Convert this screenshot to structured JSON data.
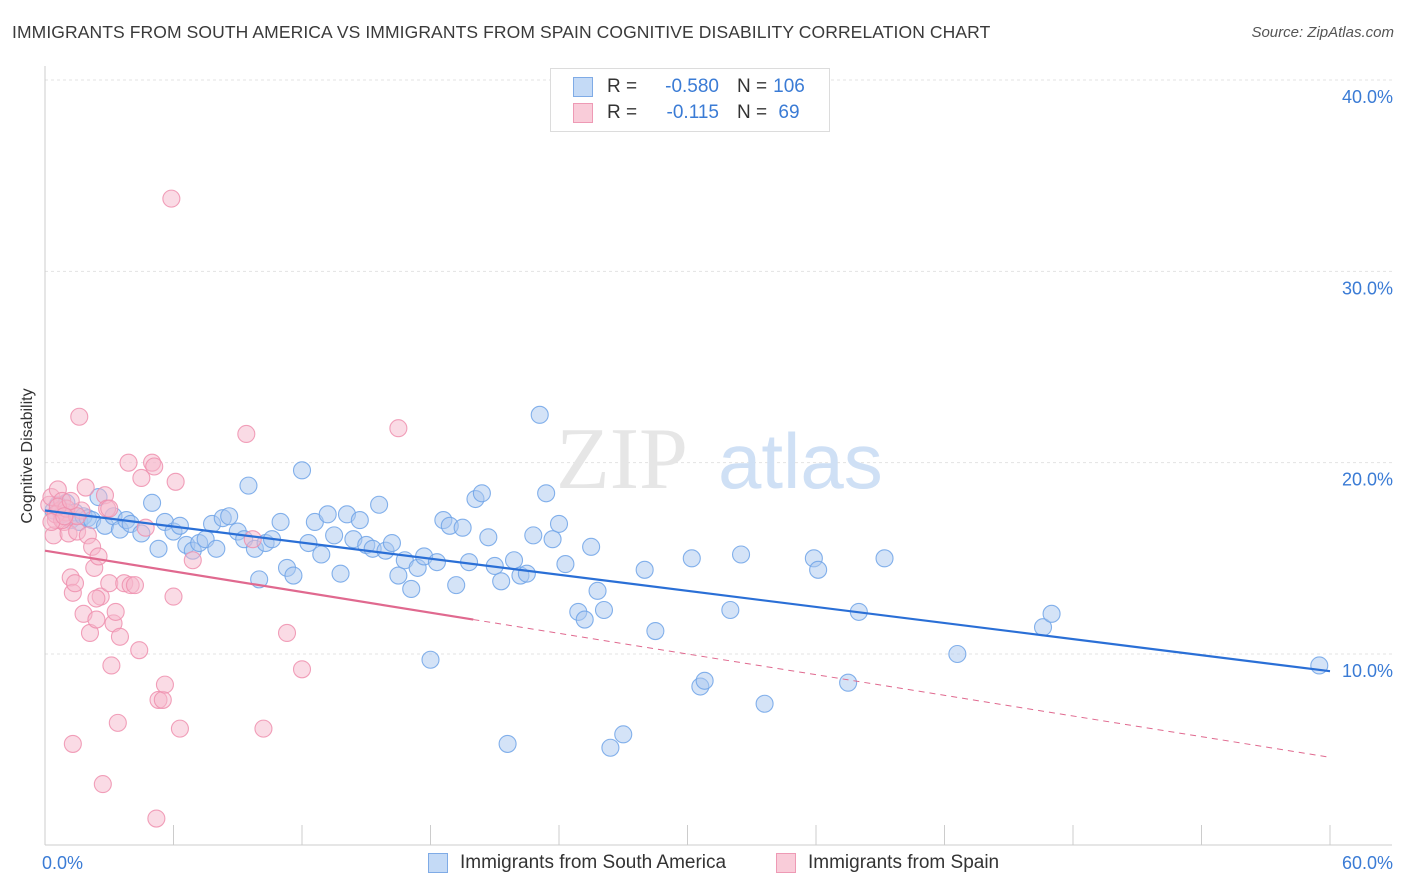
{
  "header": {
    "title": "IMMIGRANTS FROM SOUTH AMERICA VS IMMIGRANTS FROM SPAIN COGNITIVE DISABILITY CORRELATION CHART",
    "source": "Source: ZipAtlas.com"
  },
  "watermark": {
    "zip": "ZIP",
    "atlas": "atlas"
  },
  "legend": {
    "r_label": "R =",
    "n_label": "N =",
    "rows": [
      {
        "r": "-0.580",
        "n": "106",
        "color": "#a9c8f0"
      },
      {
        "r": "-0.115",
        "n": "69",
        "color": "#f5b8cb"
      }
    ]
  },
  "chart_data": {
    "type": "scatter",
    "title": "IMMIGRANTS FROM SOUTH AMERICA VS IMMIGRANTS FROM SPAIN COGNITIVE DISABILITY CORRELATION CHART",
    "xlabel": "",
    "ylabel": "Cognitive Disability",
    "xlim": [
      0,
      60
    ],
    "ylim": [
      0,
      40
    ],
    "x_tick_labels": [
      "0.0%",
      "60.0%"
    ],
    "y_ticks": [
      10,
      20,
      30,
      40
    ],
    "y_tick_labels": [
      "10.0%",
      "20.0%",
      "30.0%",
      "40.0%"
    ],
    "grid": true,
    "legend_position": "top-center",
    "series": [
      {
        "name": "Immigrants from South America",
        "color": "#6fa3e8",
        "fill": "#a9c8f0",
        "line_color": "#2a6fd6",
        "trend": {
          "x0": 0.0,
          "y0": 17.5,
          "x1": 60.0,
          "y1": 9.1,
          "dashed_from": null
        },
        "points": [
          [
            0.4,
            17.5
          ],
          [
            0.6,
            17.8
          ],
          [
            0.8,
            17.3
          ],
          [
            1.0,
            17.9
          ],
          [
            1.2,
            17.0
          ],
          [
            1.4,
            17.4
          ],
          [
            1.6,
            16.9
          ],
          [
            1.8,
            17.2
          ],
          [
            2.0,
            17.1
          ],
          [
            2.2,
            17.0
          ],
          [
            2.5,
            18.2
          ],
          [
            2.8,
            16.7
          ],
          [
            3.2,
            17.2
          ],
          [
            3.5,
            16.5
          ],
          [
            3.8,
            17.0
          ],
          [
            4.0,
            16.8
          ],
          [
            4.5,
            16.3
          ],
          [
            5.0,
            17.9
          ],
          [
            5.3,
            15.5
          ],
          [
            5.6,
            16.9
          ],
          [
            6.0,
            16.4
          ],
          [
            6.3,
            16.7
          ],
          [
            6.6,
            15.7
          ],
          [
            6.9,
            15.4
          ],
          [
            7.2,
            15.8
          ],
          [
            7.5,
            16.0
          ],
          [
            7.8,
            16.8
          ],
          [
            8.0,
            15.5
          ],
          [
            8.3,
            17.1
          ],
          [
            8.6,
            17.2
          ],
          [
            9.0,
            16.4
          ],
          [
            9.3,
            16.0
          ],
          [
            9.5,
            18.8
          ],
          [
            9.8,
            15.5
          ],
          [
            10.0,
            13.9
          ],
          [
            10.3,
            15.8
          ],
          [
            10.6,
            16.0
          ],
          [
            11.0,
            16.9
          ],
          [
            11.3,
            14.5
          ],
          [
            11.6,
            14.1
          ],
          [
            12.0,
            19.6
          ],
          [
            12.3,
            15.8
          ],
          [
            12.6,
            16.9
          ],
          [
            12.9,
            15.2
          ],
          [
            13.2,
            17.3
          ],
          [
            13.5,
            16.2
          ],
          [
            13.8,
            14.2
          ],
          [
            14.1,
            17.3
          ],
          [
            14.4,
            16.0
          ],
          [
            14.7,
            17.0
          ],
          [
            15.0,
            15.7
          ],
          [
            15.3,
            15.5
          ],
          [
            15.6,
            17.8
          ],
          [
            15.9,
            15.4
          ],
          [
            16.2,
            15.8
          ],
          [
            16.5,
            14.1
          ],
          [
            16.8,
            14.9
          ],
          [
            17.1,
            13.4
          ],
          [
            17.4,
            14.5
          ],
          [
            17.7,
            15.1
          ],
          [
            18.0,
            9.7
          ],
          [
            18.3,
            14.8
          ],
          [
            18.6,
            17.0
          ],
          [
            18.9,
            16.7
          ],
          [
            19.2,
            13.6
          ],
          [
            19.5,
            16.6
          ],
          [
            19.8,
            14.8
          ],
          [
            20.1,
            18.1
          ],
          [
            20.4,
            18.4
          ],
          [
            20.7,
            16.1
          ],
          [
            21.0,
            14.6
          ],
          [
            21.3,
            13.8
          ],
          [
            21.6,
            5.3
          ],
          [
            21.9,
            14.9
          ],
          [
            22.2,
            14.1
          ],
          [
            22.5,
            14.2
          ],
          [
            22.8,
            16.2
          ],
          [
            23.1,
            22.5
          ],
          [
            23.4,
            18.4
          ],
          [
            23.7,
            16.0
          ],
          [
            24.0,
            16.8
          ],
          [
            24.3,
            14.7
          ],
          [
            24.9,
            12.2
          ],
          [
            25.2,
            11.8
          ],
          [
            25.5,
            15.6
          ],
          [
            25.8,
            13.3
          ],
          [
            26.1,
            12.3
          ],
          [
            26.4,
            5.1
          ],
          [
            27.0,
            5.8
          ],
          [
            28.0,
            14.4
          ],
          [
            28.5,
            11.2
          ],
          [
            30.2,
            15.0
          ],
          [
            30.6,
            8.3
          ],
          [
            30.8,
            8.6
          ],
          [
            32.0,
            12.3
          ],
          [
            32.5,
            15.2
          ],
          [
            33.6,
            7.4
          ],
          [
            35.9,
            15.0
          ],
          [
            36.1,
            14.4
          ],
          [
            37.5,
            8.5
          ],
          [
            38.0,
            12.2
          ],
          [
            39.2,
            15.0
          ],
          [
            42.6,
            10.0
          ],
          [
            46.6,
            11.4
          ],
          [
            47.0,
            12.1
          ],
          [
            59.5,
            9.4
          ]
        ]
      },
      {
        "name": "Immigrants from Spain",
        "color": "#ee8fae",
        "fill": "#f5b8cb",
        "line_color": "#e0698f",
        "trend": {
          "x0": 0.0,
          "y0": 15.4,
          "x1": 60.0,
          "y1": 4.6,
          "dashed_from": 20.0
        },
        "points": [
          [
            0.2,
            17.8
          ],
          [
            0.3,
            18.2
          ],
          [
            0.4,
            16.2
          ],
          [
            0.5,
            17.0
          ],
          [
            0.6,
            18.6
          ],
          [
            0.7,
            17.5
          ],
          [
            0.8,
            18.0
          ],
          [
            0.9,
            16.9
          ],
          [
            1.0,
            17.4
          ],
          [
            1.1,
            16.3
          ],
          [
            1.2,
            14.0
          ],
          [
            1.3,
            13.2
          ],
          [
            1.4,
            13.7
          ],
          [
            1.5,
            16.4
          ],
          [
            1.6,
            22.4
          ],
          [
            1.7,
            17.5
          ],
          [
            1.8,
            12.1
          ],
          [
            1.9,
            18.7
          ],
          [
            2.0,
            16.2
          ],
          [
            2.1,
            11.1
          ],
          [
            2.2,
            15.6
          ],
          [
            2.3,
            14.5
          ],
          [
            2.4,
            11.8
          ],
          [
            2.5,
            15.1
          ],
          [
            2.6,
            13.0
          ],
          [
            2.7,
            3.2
          ],
          [
            2.8,
            18.3
          ],
          [
            2.9,
            17.6
          ],
          [
            3.0,
            13.7
          ],
          [
            3.1,
            9.4
          ],
          [
            3.2,
            11.6
          ],
          [
            3.3,
            12.2
          ],
          [
            3.4,
            6.4
          ],
          [
            3.5,
            10.9
          ],
          [
            3.7,
            13.7
          ],
          [
            3.9,
            20.0
          ],
          [
            4.0,
            13.6
          ],
          [
            4.2,
            13.6
          ],
          [
            4.4,
            10.2
          ],
          [
            4.5,
            19.2
          ],
          [
            4.7,
            16.6
          ],
          [
            5.0,
            20.0
          ],
          [
            5.1,
            19.8
          ],
          [
            5.3,
            7.6
          ],
          [
            5.5,
            7.6
          ],
          [
            5.6,
            8.4
          ],
          [
            5.9,
            33.8
          ],
          [
            6.0,
            13.0
          ],
          [
            6.1,
            19.0
          ],
          [
            6.3,
            6.1
          ],
          [
            6.9,
            14.9
          ],
          [
            9.4,
            21.5
          ],
          [
            9.7,
            16.0
          ],
          [
            10.2,
            6.1
          ],
          [
            11.3,
            11.1
          ],
          [
            12.0,
            9.2
          ],
          [
            16.5,
            21.8
          ],
          [
            0.5,
            17.3
          ],
          [
            0.8,
            17.0
          ],
          [
            1.0,
            17.6
          ],
          [
            1.5,
            17.2
          ],
          [
            0.3,
            16.9
          ],
          [
            0.6,
            17.7
          ],
          [
            1.2,
            18.0
          ],
          [
            0.9,
            17.2
          ],
          [
            3.0,
            17.6
          ],
          [
            1.3,
            5.3
          ],
          [
            5.2,
            1.4
          ],
          [
            2.4,
            12.9
          ]
        ]
      }
    ]
  }
}
